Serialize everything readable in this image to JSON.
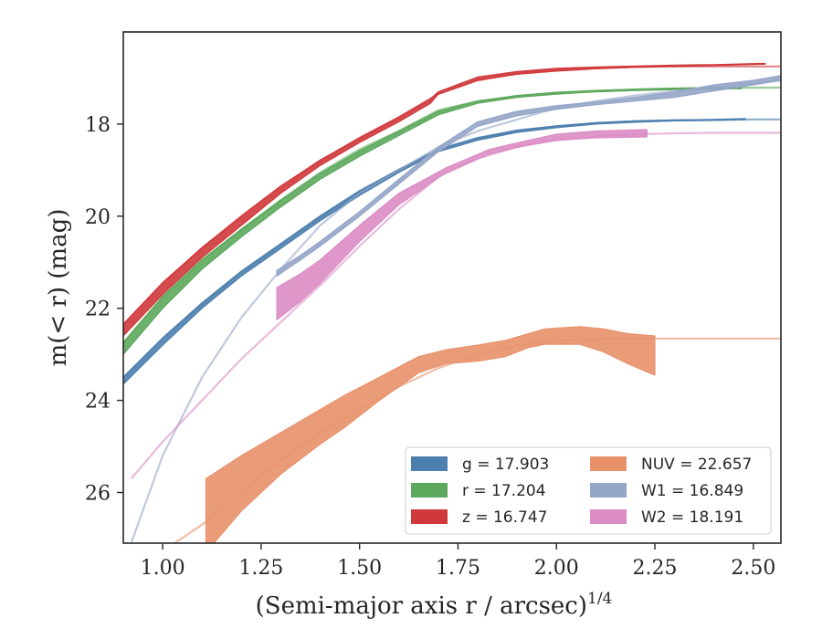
{
  "chart_data": {
    "type": "line",
    "xlabel": "(Semi-major axis r / arcsec)",
    "xlabel_exponent": "1/4",
    "ylabel": "m(< r) (mag)",
    "xlim": [
      0.9,
      2.57
    ],
    "ylim": [
      27.1,
      16.0
    ],
    "y_inverted": true,
    "xticks": [
      1.0,
      1.25,
      1.5,
      1.75,
      2.0,
      2.25,
      2.5
    ],
    "xtick_labels": [
      "1.00",
      "1.25",
      "1.50",
      "1.75",
      "2.00",
      "2.25",
      "2.50"
    ],
    "yticks": [
      18,
      20,
      22,
      24,
      26
    ],
    "ytick_labels": [
      "18",
      "20",
      "22",
      "24",
      "26"
    ],
    "grid": false,
    "legend_position": "lower-right",
    "legend": [
      {
        "key": "g",
        "label": "g = 17.903",
        "color": "#4c7fae"
      },
      {
        "key": "r",
        "label": "r = 17.204",
        "color": "#5ca85c"
      },
      {
        "key": "z",
        "label": "z = 16.747",
        "color": "#d0393c"
      },
      {
        "key": "NUV",
        "label": "NUV = 22.657",
        "color": "#e8916a"
      },
      {
        "key": "W1",
        "label": "W1 = 16.849",
        "color": "#95a5c8"
      },
      {
        "key": "W2",
        "label": "W2 = 18.191",
        "color": "#db8cc4"
      }
    ],
    "series": [
      {
        "name": "z",
        "color": "#d0393c",
        "model_x": [
          0.9,
          1.0,
          1.1,
          1.2,
          1.3,
          1.4,
          1.5,
          1.6,
          1.7,
          1.8,
          1.9,
          2.0,
          2.1,
          2.2,
          2.3,
          2.4,
          2.5,
          2.57
        ],
        "model_y": [
          22.35,
          21.45,
          20.7,
          20.0,
          19.35,
          18.8,
          18.3,
          17.85,
          17.35,
          17.05,
          16.9,
          16.82,
          16.78,
          16.76,
          16.75,
          16.75,
          16.75,
          16.75
        ],
        "band_x": [
          0.9,
          1.0,
          1.1,
          1.2,
          1.3,
          1.4,
          1.5,
          1.6,
          1.68,
          1.7,
          1.8,
          1.9,
          2.0,
          2.1,
          2.2,
          2.3,
          2.4,
          2.53
        ],
        "band_lo": [
          22.6,
          21.7,
          20.9,
          20.2,
          19.5,
          18.9,
          18.4,
          17.95,
          17.55,
          17.35,
          17.05,
          16.92,
          16.85,
          16.8,
          16.77,
          16.75,
          16.73,
          16.7
        ],
        "band_hi": [
          22.35,
          21.45,
          20.68,
          20.0,
          19.35,
          18.78,
          18.3,
          17.85,
          17.45,
          17.3,
          16.98,
          16.86,
          16.79,
          16.76,
          16.74,
          16.72,
          16.71,
          16.68
        ]
      },
      {
        "name": "r",
        "color": "#5ca85c",
        "model_x": [
          0.9,
          1.0,
          1.1,
          1.2,
          1.3,
          1.4,
          1.5,
          1.6,
          1.7,
          1.8,
          1.9,
          2.0,
          2.1,
          2.2,
          2.3,
          2.4,
          2.5,
          2.57
        ],
        "model_y": [
          22.75,
          21.75,
          20.95,
          20.3,
          19.65,
          19.05,
          18.55,
          18.15,
          17.7,
          17.5,
          17.4,
          17.32,
          17.28,
          17.25,
          17.23,
          17.22,
          17.21,
          17.21
        ],
        "band_x": [
          0.9,
          1.0,
          1.1,
          1.2,
          1.3,
          1.4,
          1.5,
          1.6,
          1.7,
          1.8,
          1.9,
          2.0,
          2.1,
          2.2,
          2.3,
          2.4,
          2.47
        ],
        "band_lo": [
          23.0,
          22.0,
          21.15,
          20.45,
          19.8,
          19.2,
          18.7,
          18.25,
          17.8,
          17.55,
          17.42,
          17.35,
          17.3,
          17.27,
          17.25,
          17.24,
          17.23
        ],
        "band_hi": [
          22.75,
          21.75,
          20.95,
          20.28,
          19.65,
          19.07,
          18.58,
          18.15,
          17.72,
          17.5,
          17.38,
          17.31,
          17.27,
          17.24,
          17.22,
          17.21,
          17.2
        ]
      },
      {
        "name": "g",
        "color": "#4c7fae",
        "model_x": [
          0.9,
          1.0,
          1.1,
          1.2,
          1.3,
          1.4,
          1.5,
          1.6,
          1.7,
          1.8,
          1.9,
          2.0,
          2.1,
          2.2,
          2.3,
          2.4,
          2.5,
          2.57
        ],
        "model_y": [
          23.5,
          22.65,
          21.9,
          21.2,
          20.6,
          20.0,
          19.45,
          19.0,
          18.55,
          18.3,
          18.15,
          18.05,
          17.98,
          17.94,
          17.92,
          17.91,
          17.9,
          17.9
        ],
        "band_x": [
          0.9,
          1.0,
          1.1,
          1.2,
          1.3,
          1.4,
          1.5,
          1.6,
          1.7,
          1.8,
          1.9,
          2.0,
          2.1,
          2.2,
          2.3,
          2.4,
          2.48
        ],
        "band_lo": [
          23.65,
          22.8,
          22.0,
          21.3,
          20.7,
          20.1,
          19.55,
          19.05,
          18.6,
          18.35,
          18.18,
          18.08,
          18.0,
          17.96,
          17.93,
          17.92,
          17.9
        ],
        "band_hi": [
          23.5,
          22.65,
          21.88,
          21.2,
          20.6,
          20.0,
          19.45,
          18.98,
          18.55,
          18.3,
          18.13,
          18.04,
          17.97,
          17.93,
          17.91,
          17.9,
          17.88
        ]
      },
      {
        "name": "W1",
        "color": "#95a5c8",
        "model_x": [
          0.92,
          1.0,
          1.1,
          1.2,
          1.3,
          1.4,
          1.5,
          1.6,
          1.7,
          1.8,
          1.9,
          2.0,
          2.1,
          2.2,
          2.3,
          2.4,
          2.5,
          2.57
        ],
        "model_y": [
          27.1,
          25.2,
          23.5,
          22.2,
          21.15,
          20.2,
          19.5,
          19.0,
          18.5,
          18.15,
          17.9,
          17.65,
          17.5,
          17.38,
          17.28,
          17.2,
          17.12,
          17.05
        ],
        "band_x": [
          1.29,
          1.35,
          1.4,
          1.5,
          1.6,
          1.7,
          1.8,
          1.9,
          2.0,
          2.1,
          2.2,
          2.3,
          2.4,
          2.5,
          2.57
        ],
        "band_lo": [
          21.3,
          20.95,
          20.65,
          20.0,
          19.3,
          18.6,
          18.05,
          17.82,
          17.68,
          17.58,
          17.5,
          17.42,
          17.28,
          17.15,
          17.05
        ],
        "band_hi": [
          21.18,
          20.85,
          20.55,
          19.9,
          19.2,
          18.5,
          17.95,
          17.72,
          17.6,
          17.52,
          17.42,
          17.3,
          17.15,
          17.05,
          16.95
        ]
      },
      {
        "name": "W2",
        "color": "#db8cc4",
        "model_x": [
          0.92,
          1.0,
          1.1,
          1.2,
          1.3,
          1.4,
          1.5,
          1.6,
          1.7,
          1.8,
          1.9,
          2.0,
          2.1,
          2.2,
          2.3,
          2.4,
          2.5,
          2.57
        ],
        "model_y": [
          25.7,
          24.9,
          24.0,
          23.1,
          22.3,
          21.5,
          20.65,
          19.85,
          19.15,
          18.75,
          18.5,
          18.35,
          18.27,
          18.22,
          18.2,
          18.19,
          18.19,
          18.19
        ],
        "band_x": [
          1.29,
          1.35,
          1.4,
          1.5,
          1.6,
          1.72,
          1.83,
          1.93,
          2.0,
          2.1,
          2.23
        ],
        "band_lo": [
          22.25,
          21.85,
          21.45,
          20.55,
          19.75,
          19.05,
          18.65,
          18.45,
          18.35,
          18.3,
          18.28
        ],
        "band_hi": [
          21.55,
          21.25,
          20.95,
          20.2,
          19.5,
          18.95,
          18.55,
          18.35,
          18.22,
          18.15,
          18.12
        ]
      },
      {
        "name": "NUV",
        "color": "#e8916a",
        "model_x": [
          1.03,
          1.1,
          1.2,
          1.3,
          1.4,
          1.5,
          1.6,
          1.7,
          1.8,
          1.9,
          2.0,
          2.1,
          2.2,
          2.3,
          2.4,
          2.5,
          2.57
        ],
        "model_y": [
          27.1,
          26.7,
          26.0,
          25.3,
          24.7,
          24.2,
          23.7,
          23.3,
          23.0,
          22.8,
          22.7,
          22.67,
          22.66,
          22.66,
          22.66,
          22.66,
          22.66
        ],
        "band_x": [
          1.11,
          1.2,
          1.3,
          1.4,
          1.46,
          1.55,
          1.65,
          1.72,
          1.8,
          1.87,
          1.93,
          1.97,
          2.06,
          2.12,
          2.18,
          2.25
        ],
        "band_lo": [
          27.3,
          26.4,
          25.6,
          24.95,
          24.6,
          24.0,
          23.4,
          23.2,
          23.15,
          23.05,
          22.85,
          22.78,
          22.78,
          22.95,
          23.2,
          23.45
        ],
        "band_hi": [
          25.7,
          25.2,
          24.7,
          24.2,
          23.9,
          23.5,
          23.05,
          22.9,
          22.8,
          22.7,
          22.55,
          22.45,
          22.4,
          22.45,
          22.55,
          22.6
        ]
      }
    ]
  }
}
